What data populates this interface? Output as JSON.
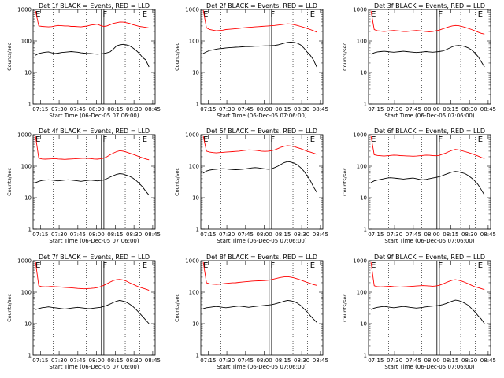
{
  "chart_data": [
    {
      "type": "line",
      "title": "Det 1f BLACK = Events, RED = LLD",
      "xlabel": "Start Time (06-Dec-05 07:06:00)",
      "ylabel": "Counts/sec",
      "yscale": "log",
      "ylim": [
        1,
        1000
      ],
      "xticks": [
        "07:15",
        "07:30",
        "07:45",
        "08:00",
        "08:15",
        "08:30",
        "08:45"
      ],
      "yticks": [
        "1",
        "10",
        "100",
        "1000"
      ],
      "markers": [
        "E",
        "F",
        "E"
      ],
      "series": [
        {
          "name": "RED",
          "color": "#ff0000",
          "values": [
            900,
            300,
            290,
            285,
            280,
            285,
            300,
            310,
            305,
            300,
            300,
            290,
            290,
            285,
            280,
            290,
            300,
            320,
            330,
            340,
            310,
            290,
            300,
            330,
            360,
            380,
            400,
            395,
            380,
            360,
            330,
            310,
            290,
            280,
            270,
            260
          ]
        },
        {
          "name": "BLACK",
          "color": "#000000",
          "values": [
            35,
            40,
            42,
            44,
            45,
            42,
            40,
            41,
            43,
            44,
            45,
            46,
            45,
            44,
            42,
            41,
            40,
            40,
            39,
            38,
            39,
            40,
            42,
            45,
            55,
            70,
            75,
            78,
            75,
            70,
            60,
            50,
            40,
            30,
            25,
            15
          ]
        }
      ]
    },
    {
      "type": "line",
      "title": "Det 2f BLACK = Events, RED = LLD",
      "xlabel": "Start Time (06-Dec-05 07:06:00)",
      "ylabel": "Counts/sec",
      "yscale": "log",
      "ylim": [
        1,
        1000
      ],
      "xticks": [
        "07:15",
        "07:30",
        "07:45",
        "08:00",
        "08:15",
        "08:30",
        "08:45"
      ],
      "yticks": [
        "1",
        "10",
        "100",
        "1000"
      ],
      "markers": [
        "E",
        "F",
        "E"
      ],
      "series": [
        {
          "name": "RED",
          "color": "#ff0000",
          "values": [
            950,
            260,
            230,
            220,
            210,
            215,
            220,
            230,
            235,
            240,
            245,
            250,
            260,
            265,
            270,
            275,
            280,
            285,
            290,
            295,
            300,
            305,
            310,
            320,
            330,
            340,
            350,
            345,
            330,
            310,
            290,
            270,
            250,
            230,
            210,
            190
          ]
        },
        {
          "name": "BLACK",
          "color": "#000000",
          "values": [
            40,
            45,
            50,
            52,
            55,
            57,
            58,
            60,
            61,
            62,
            63,
            64,
            65,
            66,
            66,
            67,
            68,
            68,
            69,
            70,
            70,
            71,
            72,
            75,
            80,
            85,
            90,
            92,
            90,
            85,
            75,
            60,
            45,
            35,
            25,
            15
          ]
        }
      ]
    },
    {
      "type": "line",
      "title": "Det 3f BLACK = Events, RED = LLD",
      "xlabel": "Start Time (06-Dec-05 07:06:00)",
      "ylabel": "Counts/sec",
      "yscale": "log",
      "ylim": [
        1,
        1000
      ],
      "xticks": [
        "07:15",
        "07:30",
        "07:45",
        "08:00",
        "08:15",
        "08:30",
        "08:45"
      ],
      "yticks": [
        "1",
        "10",
        "100",
        "1000"
      ],
      "markers": [
        "E",
        "F",
        "E"
      ],
      "series": [
        {
          "name": "RED",
          "color": "#ff0000",
          "values": [
            900,
            230,
            210,
            205,
            200,
            205,
            210,
            215,
            210,
            205,
            200,
            200,
            205,
            210,
            215,
            210,
            205,
            200,
            195,
            200,
            210,
            220,
            240,
            260,
            280,
            300,
            310,
            305,
            290,
            270,
            250,
            230,
            210,
            190,
            175,
            165
          ]
        },
        {
          "name": "BLACK",
          "color": "#000000",
          "values": [
            38,
            42,
            45,
            46,
            47,
            46,
            45,
            44,
            45,
            46,
            47,
            46,
            45,
            44,
            43,
            44,
            45,
            46,
            45,
            44,
            45,
            46,
            48,
            52,
            58,
            65,
            70,
            72,
            70,
            66,
            60,
            52,
            42,
            32,
            22,
            15
          ]
        }
      ]
    },
    {
      "type": "line",
      "title": "Det 4f BLACK = Events, RED = LLD",
      "xlabel": "Start Time (06-Dec-05 07:06:00)",
      "ylabel": "Counts/sec",
      "yscale": "log",
      "ylim": [
        1,
        1000
      ],
      "xticks": [
        "07:15",
        "07:30",
        "07:45",
        "08:00",
        "08:15",
        "08:30",
        "08:45"
      ],
      "yticks": [
        "1",
        "10",
        "100",
        "1000"
      ],
      "markers": [
        "E",
        "F",
        "E"
      ],
      "series": [
        {
          "name": "RED",
          "color": "#ff0000",
          "values": [
            900,
            180,
            170,
            168,
            170,
            172,
            175,
            170,
            168,
            165,
            168,
            170,
            172,
            175,
            178,
            180,
            178,
            175,
            170,
            168,
            172,
            180,
            200,
            230,
            260,
            290,
            310,
            300,
            280,
            260,
            240,
            220,
            200,
            185,
            170,
            160
          ]
        },
        {
          "name": "BLACK",
          "color": "#000000",
          "values": [
            30,
            33,
            35,
            36,
            37,
            36,
            35,
            34,
            35,
            36,
            37,
            36,
            35,
            34,
            33,
            34,
            35,
            36,
            35,
            34,
            35,
            36,
            40,
            45,
            50,
            55,
            58,
            56,
            52,
            48,
            42,
            35,
            28,
            22,
            16,
            12
          ]
        }
      ]
    },
    {
      "type": "line",
      "title": "Det 5f BLACK = Events, RED = LLD",
      "xlabel": "Start Time (06-Dec-05 07:06:00)",
      "ylabel": "Counts/sec",
      "yscale": "log",
      "ylim": [
        1,
        1000
      ],
      "xticks": [
        "07:15",
        "07:30",
        "07:45",
        "08:00",
        "08:15",
        "08:30",
        "08:45"
      ],
      "yticks": [
        "1",
        "10",
        "100",
        "1000"
      ],
      "markers": [
        "E",
        "F",
        "E"
      ],
      "series": [
        {
          "name": "RED",
          "color": "#ff0000",
          "values": [
            900,
            300,
            280,
            270,
            265,
            270,
            275,
            280,
            285,
            290,
            295,
            300,
            310,
            320,
            330,
            325,
            320,
            310,
            300,
            295,
            300,
            310,
            330,
            360,
            400,
            430,
            450,
            440,
            420,
            390,
            360,
            330,
            300,
            280,
            260,
            240
          ]
        },
        {
          "name": "BLACK",
          "color": "#000000",
          "values": [
            60,
            70,
            75,
            78,
            80,
            82,
            83,
            82,
            80,
            78,
            77,
            78,
            80,
            82,
            85,
            88,
            90,
            88,
            85,
            82,
            80,
            82,
            90,
            100,
            115,
            130,
            140,
            135,
            125,
            110,
            90,
            70,
            50,
            35,
            22,
            15
          ]
        }
      ]
    },
    {
      "type": "line",
      "title": "Det 6f BLACK = Events, RED = LLD",
      "xlabel": "Start Time (06-Dec-05 07:06:00)",
      "ylabel": "Counts/sec",
      "yscale": "log",
      "ylim": [
        1,
        1000
      ],
      "xticks": [
        "07:15",
        "07:30",
        "07:45",
        "08:00",
        "08:15",
        "08:30",
        "08:45"
      ],
      "yticks": [
        "1",
        "10",
        "100",
        "1000"
      ],
      "markers": [
        "E",
        "F",
        "E"
      ],
      "series": [
        {
          "name": "RED",
          "color": "#ff0000",
          "values": [
            900,
            230,
            220,
            215,
            210,
            215,
            220,
            225,
            222,
            218,
            215,
            212,
            210,
            208,
            210,
            215,
            220,
            225,
            222,
            218,
            215,
            220,
            240,
            260,
            290,
            320,
            340,
            330,
            310,
            290,
            270,
            250,
            230,
            210,
            190,
            175
          ]
        },
        {
          "name": "BLACK",
          "color": "#000000",
          "values": [
            30,
            34,
            36,
            38,
            40,
            42,
            43,
            42,
            41,
            40,
            39,
            40,
            41,
            42,
            40,
            38,
            37,
            38,
            40,
            42,
            44,
            46,
            50,
            55,
            60,
            65,
            68,
            66,
            62,
            58,
            50,
            42,
            34,
            26,
            18,
            12
          ]
        }
      ]
    },
    {
      "type": "line",
      "title": "Det 7f BLACK = Events, RED = LLD",
      "xlabel": "Start Time (06-Dec-05 07:06:00)",
      "ylabel": "Counts/sec",
      "yscale": "log",
      "ylim": [
        1,
        1000
      ],
      "xticks": [
        "07:15",
        "07:30",
        "07:45",
        "08:00",
        "08:15",
        "08:30",
        "08:45"
      ],
      "yticks": [
        "1",
        "10",
        "100",
        "1000"
      ],
      "markers": [
        "E",
        "F",
        "E"
      ],
      "series": [
        {
          "name": "RED",
          "color": "#ff0000",
          "values": [
            900,
            160,
            150,
            148,
            150,
            152,
            150,
            148,
            145,
            142,
            140,
            138,
            135,
            132,
            130,
            128,
            130,
            132,
            135,
            140,
            150,
            165,
            185,
            210,
            235,
            250,
            255,
            245,
            225,
            200,
            180,
            160,
            145,
            135,
            125,
            115
          ]
        },
        {
          "name": "BLACK",
          "color": "#000000",
          "values": [
            28,
            30,
            32,
            33,
            34,
            33,
            32,
            31,
            30,
            29,
            30,
            31,
            32,
            33,
            32,
            31,
            30,
            30,
            31,
            32,
            33,
            35,
            38,
            42,
            47,
            52,
            55,
            52,
            48,
            42,
            35,
            28,
            22,
            17,
            13,
            10
          ]
        }
      ]
    },
    {
      "type": "line",
      "title": "Det 8f BLACK = Events, RED = LLD",
      "xlabel": "Start Time (06-Dec-05 07:06:00)",
      "ylabel": "Counts/sec",
      "yscale": "log",
      "ylim": [
        1,
        1000
      ],
      "xticks": [
        "07:15",
        "07:30",
        "07:45",
        "08:00",
        "08:15",
        "08:30",
        "08:45"
      ],
      "yticks": [
        "1",
        "10",
        "100",
        "1000"
      ],
      "markers": [
        "E",
        "F",
        "E"
      ],
      "series": [
        {
          "name": "RED",
          "color": "#ff0000",
          "values": [
            900,
            200,
            185,
            180,
            178,
            180,
            185,
            190,
            195,
            198,
            200,
            205,
            210,
            215,
            220,
            225,
            228,
            230,
            232,
            235,
            240,
            250,
            265,
            280,
            295,
            305,
            310,
            300,
            285,
            265,
            245,
            225,
            205,
            190,
            175,
            165
          ]
        },
        {
          "name": "BLACK",
          "color": "#000000",
          "values": [
            30,
            32,
            33,
            34,
            35,
            34,
            33,
            32,
            33,
            34,
            35,
            36,
            35,
            34,
            33,
            34,
            35,
            36,
            37,
            38,
            39,
            40,
            42,
            45,
            48,
            52,
            55,
            53,
            50,
            45,
            38,
            30,
            24,
            18,
            14,
            11
          ]
        }
      ]
    },
    {
      "type": "line",
      "title": "Det 9f BLACK = Events, RED = LLD",
      "xlabel": "Start Time (06-Dec-05 07:06:00)",
      "ylabel": "Counts/sec",
      "yscale": "log",
      "ylim": [
        1,
        1000
      ],
      "xticks": [
        "07:15",
        "07:30",
        "07:45",
        "08:00",
        "08:15",
        "08:30",
        "08:45"
      ],
      "yticks": [
        "1",
        "10",
        "100",
        "1000"
      ],
      "markers": [
        "E",
        "F",
        "E"
      ],
      "series": [
        {
          "name": "RED",
          "color": "#ff0000",
          "values": [
            900,
            160,
            150,
            148,
            150,
            152,
            155,
            150,
            148,
            145,
            148,
            150,
            152,
            155,
            158,
            160,
            162,
            160,
            158,
            155,
            158,
            165,
            180,
            200,
            220,
            240,
            250,
            240,
            225,
            205,
            185,
            165,
            150,
            140,
            130,
            120
          ]
        },
        {
          "name": "BLACK",
          "color": "#000000",
          "values": [
            28,
            31,
            33,
            34,
            35,
            34,
            33,
            32,
            33,
            34,
            35,
            34,
            33,
            32,
            31,
            32,
            33,
            34,
            35,
            36,
            37,
            38,
            40,
            43,
            47,
            52,
            56,
            54,
            50,
            44,
            38,
            30,
            24,
            18,
            14,
            10
          ]
        }
      ]
    }
  ]
}
